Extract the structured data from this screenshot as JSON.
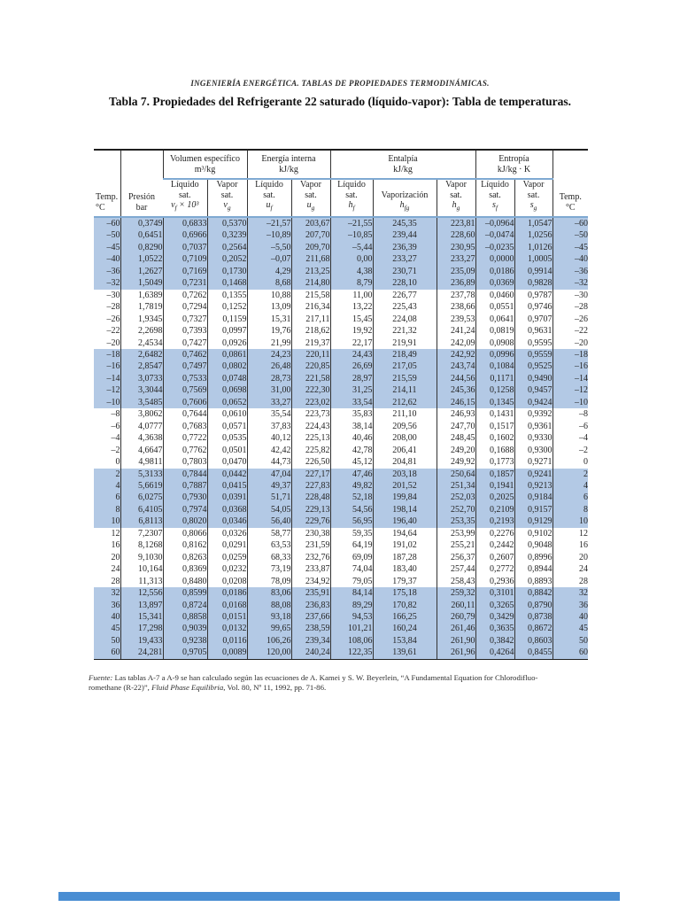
{
  "journal_header": "INGENIERÍA ENERGÉTICA. TABLAS DE PROPIEDADES TERMODINÁMICAS.",
  "title": "Tabla 7. Propiedades del Refrigerante 22 saturado (líquido-vapor): Tabla de temperaturas.",
  "table": {
    "groups": [
      {
        "line1": "Volumen específico",
        "line2": "m³/kg"
      },
      {
        "line1": "Energía interna",
        "line2": "kJ/kg"
      },
      {
        "line1": "Entalpía",
        "line2": "kJ/kg"
      },
      {
        "line1": "Entropía",
        "line2": "kJ/kg · K"
      }
    ],
    "columns": [
      {
        "id": "temp-left",
        "line1": "Temp.",
        "line2": "°C"
      },
      {
        "id": "presion",
        "line1": "Presión",
        "line2": "bar"
      },
      {
        "id": "vf",
        "line1": "Líquido",
        "line2": "sat.",
        "sym": {
          "base": "v",
          "sub": "f",
          "suffix": " × 10³"
        }
      },
      {
        "id": "vg",
        "line1": "Vapor",
        "line2": "sat.",
        "sym": {
          "base": "v",
          "sub": "g"
        }
      },
      {
        "id": "uf",
        "line1": "Líquido",
        "line2": "sat.",
        "sym": {
          "base": "u",
          "sub": "f"
        }
      },
      {
        "id": "ug",
        "line1": "Vapor",
        "line2": "sat.",
        "sym": {
          "base": "u",
          "sub": "g"
        }
      },
      {
        "id": "hf",
        "line1": "Líquido",
        "line2": "sat.",
        "sym": {
          "base": "h",
          "sub": "f"
        }
      },
      {
        "id": "hfg",
        "line1": "Vaporización",
        "sym": {
          "base": "h",
          "sub": "fg"
        }
      },
      {
        "id": "hg",
        "line1": "Vapor",
        "line2": "sat.",
        "sym": {
          "base": "h",
          "sub": "g"
        }
      },
      {
        "id": "sf",
        "line1": "Líquido",
        "line2": "sat.",
        "sym": {
          "base": "s",
          "sub": "f"
        }
      },
      {
        "id": "sg",
        "line1": "Vapor",
        "line2": "sat.",
        "sym": {
          "base": "s",
          "sub": "g"
        }
      },
      {
        "id": "temp-right",
        "line1": "Temp.",
        "line2": "°C"
      }
    ],
    "blocks": [
      {
        "shade": "blue",
        "rows": [
          [
            "–60",
            "0,3749",
            "0,6833",
            "0,5370",
            "–21,57",
            "203,67",
            "–21,55",
            "245,35",
            "223,81",
            "–0,0964",
            "1,0547",
            "–60"
          ],
          [
            "–50",
            "0,6451",
            "0,6966",
            "0,3239",
            "–10,89",
            "207,70",
            "–10,85",
            "239,44",
            "228,60",
            "–0,0474",
            "1,0256",
            "–50"
          ],
          [
            "–45",
            "0,8290",
            "0,7037",
            "0,2564",
            "–5,50",
            "209,70",
            "–5,44",
            "236,39",
            "230,95",
            "–0,0235",
            "1,0126",
            "–45"
          ],
          [
            "–40",
            "1,0522",
            "0,7109",
            "0,2052",
            "–0,07",
            "211,68",
            "0,00",
            "233,27",
            "233,27",
            "0,0000",
            "1,0005",
            "–40"
          ],
          [
            "–36",
            "1,2627",
            "0,7169",
            "0,1730",
            "4,29",
            "213,25",
            "4,38",
            "230,71",
            "235,09",
            "0,0186",
            "0,9914",
            "–36"
          ],
          [
            "–32",
            "1,5049",
            "0,7231",
            "0,1468",
            "8,68",
            "214,80",
            "8,79",
            "228,10",
            "236,89",
            "0,0369",
            "0,9828",
            "–32"
          ]
        ]
      },
      {
        "shade": "white",
        "rows": [
          [
            "–30",
            "1,6389",
            "0,7262",
            "0,1355",
            "10,88",
            "215,58",
            "11,00",
            "226,77",
            "237,78",
            "0,0460",
            "0,9787",
            "–30"
          ],
          [
            "–28",
            "1,7819",
            "0,7294",
            "0,1252",
            "13,09",
            "216,34",
            "13,22",
            "225,43",
            "238,66",
            "0,0551",
            "0,9746",
            "–28"
          ],
          [
            "–26",
            "1,9345",
            "0,7327",
            "0,1159",
            "15,31",
            "217,11",
            "15,45",
            "224,08",
            "239,53",
            "0,0641",
            "0,9707",
            "–26"
          ],
          [
            "–22",
            "2,2698",
            "0,7393",
            "0,0997",
            "19,76",
            "218,62",
            "19,92",
            "221,32",
            "241,24",
            "0,0819",
            "0,9631",
            "–22"
          ],
          [
            "–20",
            "2,4534",
            "0,7427",
            "0,0926",
            "21,99",
            "219,37",
            "22,17",
            "219,91",
            "242,09",
            "0,0908",
            "0,9595",
            "–20"
          ]
        ]
      },
      {
        "shade": "blue",
        "rows": [
          [
            "–18",
            "2,6482",
            "0,7462",
            "0,0861",
            "24,23",
            "220,11",
            "24,43",
            "218,49",
            "242,92",
            "0,0996",
            "0,9559",
            "–18"
          ],
          [
            "–16",
            "2,8547",
            "0,7497",
            "0,0802",
            "26,48",
            "220,85",
            "26,69",
            "217,05",
            "243,74",
            "0,1084",
            "0,9525",
            "–16"
          ],
          [
            "–14",
            "3,0733",
            "0,7533",
            "0,0748",
            "28,73",
            "221,58",
            "28,97",
            "215,59",
            "244,56",
            "0,1171",
            "0,9490",
            "–14"
          ],
          [
            "–12",
            "3,3044",
            "0,7569",
            "0,0698",
            "31,00",
            "222,30",
            "31,25",
            "214,11",
            "245,36",
            "0,1258",
            "0,9457",
            "–12"
          ],
          [
            "–10",
            "3,5485",
            "0,7606",
            "0,0652",
            "33,27",
            "223,02",
            "33,54",
            "212,62",
            "246,15",
            "0,1345",
            "0,9424",
            "–10"
          ]
        ]
      },
      {
        "shade": "white",
        "rows": [
          [
            "–8",
            "3,8062",
            "0,7644",
            "0,0610",
            "35,54",
            "223,73",
            "35,83",
            "211,10",
            "246,93",
            "0,1431",
            "0,9392",
            "–8"
          ],
          [
            "–6",
            "4,0777",
            "0,7683",
            "0,0571",
            "37,83",
            "224,43",
            "38,14",
            "209,56",
            "247,70",
            "0,1517",
            "0,9361",
            "–6"
          ],
          [
            "–4",
            "4,3638",
            "0,7722",
            "0,0535",
            "40,12",
            "225,13",
            "40,46",
            "208,00",
            "248,45",
            "0,1602",
            "0,9330",
            "–4"
          ],
          [
            "–2",
            "4,6647",
            "0,7762",
            "0,0501",
            "42,42",
            "225,82",
            "42,78",
            "206,41",
            "249,20",
            "0,1688",
            "0,9300",
            "–2"
          ],
          [
            "0",
            "4,9811",
            "0,7803",
            "0,0470",
            "44,73",
            "226,50",
            "45,12",
            "204,81",
            "249,92",
            "0,1773",
            "0,9271",
            "0"
          ]
        ]
      },
      {
        "shade": "blue",
        "rows": [
          [
            "2",
            "5,3133",
            "0,7844",
            "0,0442",
            "47,04",
            "227,17",
            "47,46",
            "203,18",
            "250,64",
            "0,1857",
            "0,9241",
            "2"
          ],
          [
            "4",
            "5,6619",
            "0,7887",
            "0,0415",
            "49,37",
            "227,83",
            "49,82",
            "201,52",
            "251,34",
            "0,1941",
            "0,9213",
            "4"
          ],
          [
            "6",
            "6,0275",
            "0,7930",
            "0,0391",
            "51,71",
            "228,48",
            "52,18",
            "199,84",
            "252,03",
            "0,2025",
            "0,9184",
            "6"
          ],
          [
            "8",
            "6,4105",
            "0,7974",
            "0,0368",
            "54,05",
            "229,13",
            "54,56",
            "198,14",
            "252,70",
            "0,2109",
            "0,9157",
            "8"
          ],
          [
            "10",
            "6,8113",
            "0,8020",
            "0,0346",
            "56,40",
            "229,76",
            "56,95",
            "196,40",
            "253,35",
            "0,2193",
            "0,9129",
            "10"
          ]
        ]
      },
      {
        "shade": "white",
        "rows": [
          [
            "12",
            "7,2307",
            "0,8066",
            "0,0326",
            "58,77",
            "230,38",
            "59,35",
            "194,64",
            "253,99",
            "0,2276",
            "0,9102",
            "12"
          ],
          [
            "16",
            "8,1268",
            "0,8162",
            "0,0291",
            "63,53",
            "231,59",
            "64,19",
            "191,02",
            "255,21",
            "0,2442",
            "0,9048",
            "16"
          ],
          [
            "20",
            "9,1030",
            "0,8263",
            "0,0259",
            "68,33",
            "232,76",
            "69,09",
            "187,28",
            "256,37",
            "0,2607",
            "0,8996",
            "20"
          ],
          [
            "24",
            "10,164",
            "0,8369",
            "0,0232",
            "73,19",
            "233,87",
            "74,04",
            "183,40",
            "257,44",
            "0,2772",
            "0,8944",
            "24"
          ],
          [
            "28",
            "11,313",
            "0,8480",
            "0,0208",
            "78,09",
            "234,92",
            "79,05",
            "179,37",
            "258,43",
            "0,2936",
            "0,8893",
            "28"
          ]
        ]
      },
      {
        "shade": "blue",
        "rows": [
          [
            "32",
            "12,556",
            "0,8599",
            "0,0186",
            "83,06",
            "235,91",
            "84,14",
            "175,18",
            "259,32",
            "0,3101",
            "0,8842",
            "32"
          ],
          [
            "36",
            "13,897",
            "0,8724",
            "0,0168",
            "88,08",
            "236,83",
            "89,29",
            "170,82",
            "260,11",
            "0,3265",
            "0,8790",
            "36"
          ],
          [
            "40",
            "15,341",
            "0,8858",
            "0,0151",
            "93,18",
            "237,66",
            "94,53",
            "166,25",
            "260,79",
            "0,3429",
            "0,8738",
            "40"
          ],
          [
            "45",
            "17,298",
            "0,9039",
            "0,0132",
            "99,65",
            "238,59",
            "101,21",
            "160,24",
            "261,46",
            "0,3635",
            "0,8672",
            "45"
          ],
          [
            "50",
            "19,433",
            "0,9238",
            "0,0116",
            "106,26",
            "239,34",
            "108,06",
            "153,84",
            "261,90",
            "0,3842",
            "0,8603",
            "50"
          ],
          [
            "60",
            "24,281",
            "0,9705",
            "0,0089",
            "120,00",
            "240,24",
            "122,35",
            "139,61",
            "261,96",
            "0,4264",
            "0,8455",
            "60"
          ]
        ]
      }
    ]
  },
  "footer": {
    "parts": [
      "Fuente:",
      " Las tablas A-7 a A-9 se han calculado según las ecuaciones de A. Kamei y S. W. Beyerlein, “A Fundamental Equation for Chlorodifluo-",
      "romethane (R-22)”, ",
      "Fluid Phase Equilibria",
      ", Vol. 80, Nº 11, 1992, pp. 71-86."
    ]
  },
  "colors": {
    "row_highlight": "#b3c9e5",
    "header_rule_blue": "#7fa9d2",
    "bottom_bar_blue": "#4a8ed3"
  }
}
